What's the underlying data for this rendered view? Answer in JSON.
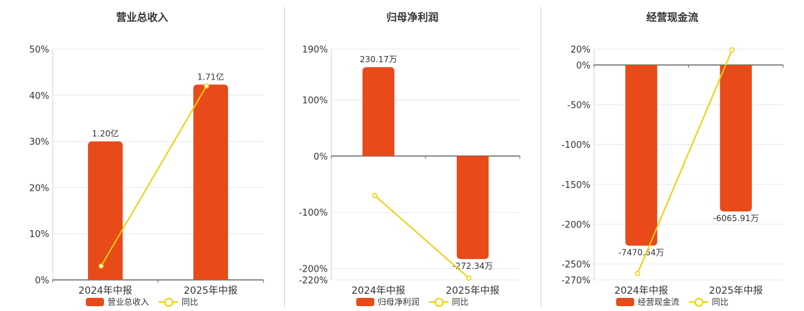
{
  "colors": {
    "bar": "#e84a1a",
    "line": "#f0cf0c",
    "grid": "#e8e8e8",
    "axis": "#666666"
  },
  "chart_data": [
    {
      "type": "bar",
      "title": "营业总收入",
      "categories": [
        "2024年中报",
        "2025年中报"
      ],
      "series": [
        {
          "name": "营业总收入",
          "type": "bar",
          "values": [
            30,
            42.3
          ],
          "labels": [
            "1.20亿",
            "1.71亿"
          ]
        },
        {
          "name": "同比",
          "type": "line",
          "values": [
            3,
            42
          ]
        }
      ],
      "yticks": [
        0,
        10,
        20,
        30,
        40,
        50
      ],
      "ytick_labels": [
        "0%",
        "10%",
        "20%",
        "30%",
        "40%",
        "50%"
      ],
      "ylim": [
        0,
        50
      ],
      "legend": "bottom",
      "grid": true
    },
    {
      "type": "bar",
      "title": "归母净利润",
      "categories": [
        "2024年中报",
        "2025年中报"
      ],
      "series": [
        {
          "name": "归母净利润",
          "type": "bar",
          "values": [
            158,
            -183
          ],
          "labels": [
            "230.17万",
            "-272.34万"
          ]
        },
        {
          "name": "同比",
          "type": "line",
          "values": [
            -70,
            -217
          ]
        }
      ],
      "yticks": [
        190,
        100,
        0,
        -100,
        -200,
        -220
      ],
      "ytick_labels": [
        "190%",
        "100%",
        "0%",
        "-100%",
        "-200%",
        "-220%"
      ],
      "ylim": [
        -220,
        190
      ],
      "legend": "bottom",
      "grid": true
    },
    {
      "type": "bar",
      "title": "经营现金流",
      "categories": [
        "2024年中报",
        "2025年中报"
      ],
      "series": [
        {
          "name": "经营现金流",
          "type": "bar",
          "values": [
            -227,
            -184
          ],
          "labels": [
            "-7470.64万",
            "-6065.91万"
          ]
        },
        {
          "name": "同比",
          "type": "line",
          "values": [
            -262,
            19
          ]
        }
      ],
      "yticks": [
        20,
        0,
        -50,
        -100,
        -150,
        -200,
        -250,
        -270
      ],
      "ytick_labels": [
        "20%",
        "0%",
        "-50%",
        "-100%",
        "-150%",
        "-200%",
        "-250%",
        "-270%"
      ],
      "ylim": [
        -270,
        20
      ],
      "legend": "bottom",
      "grid": true
    }
  ]
}
